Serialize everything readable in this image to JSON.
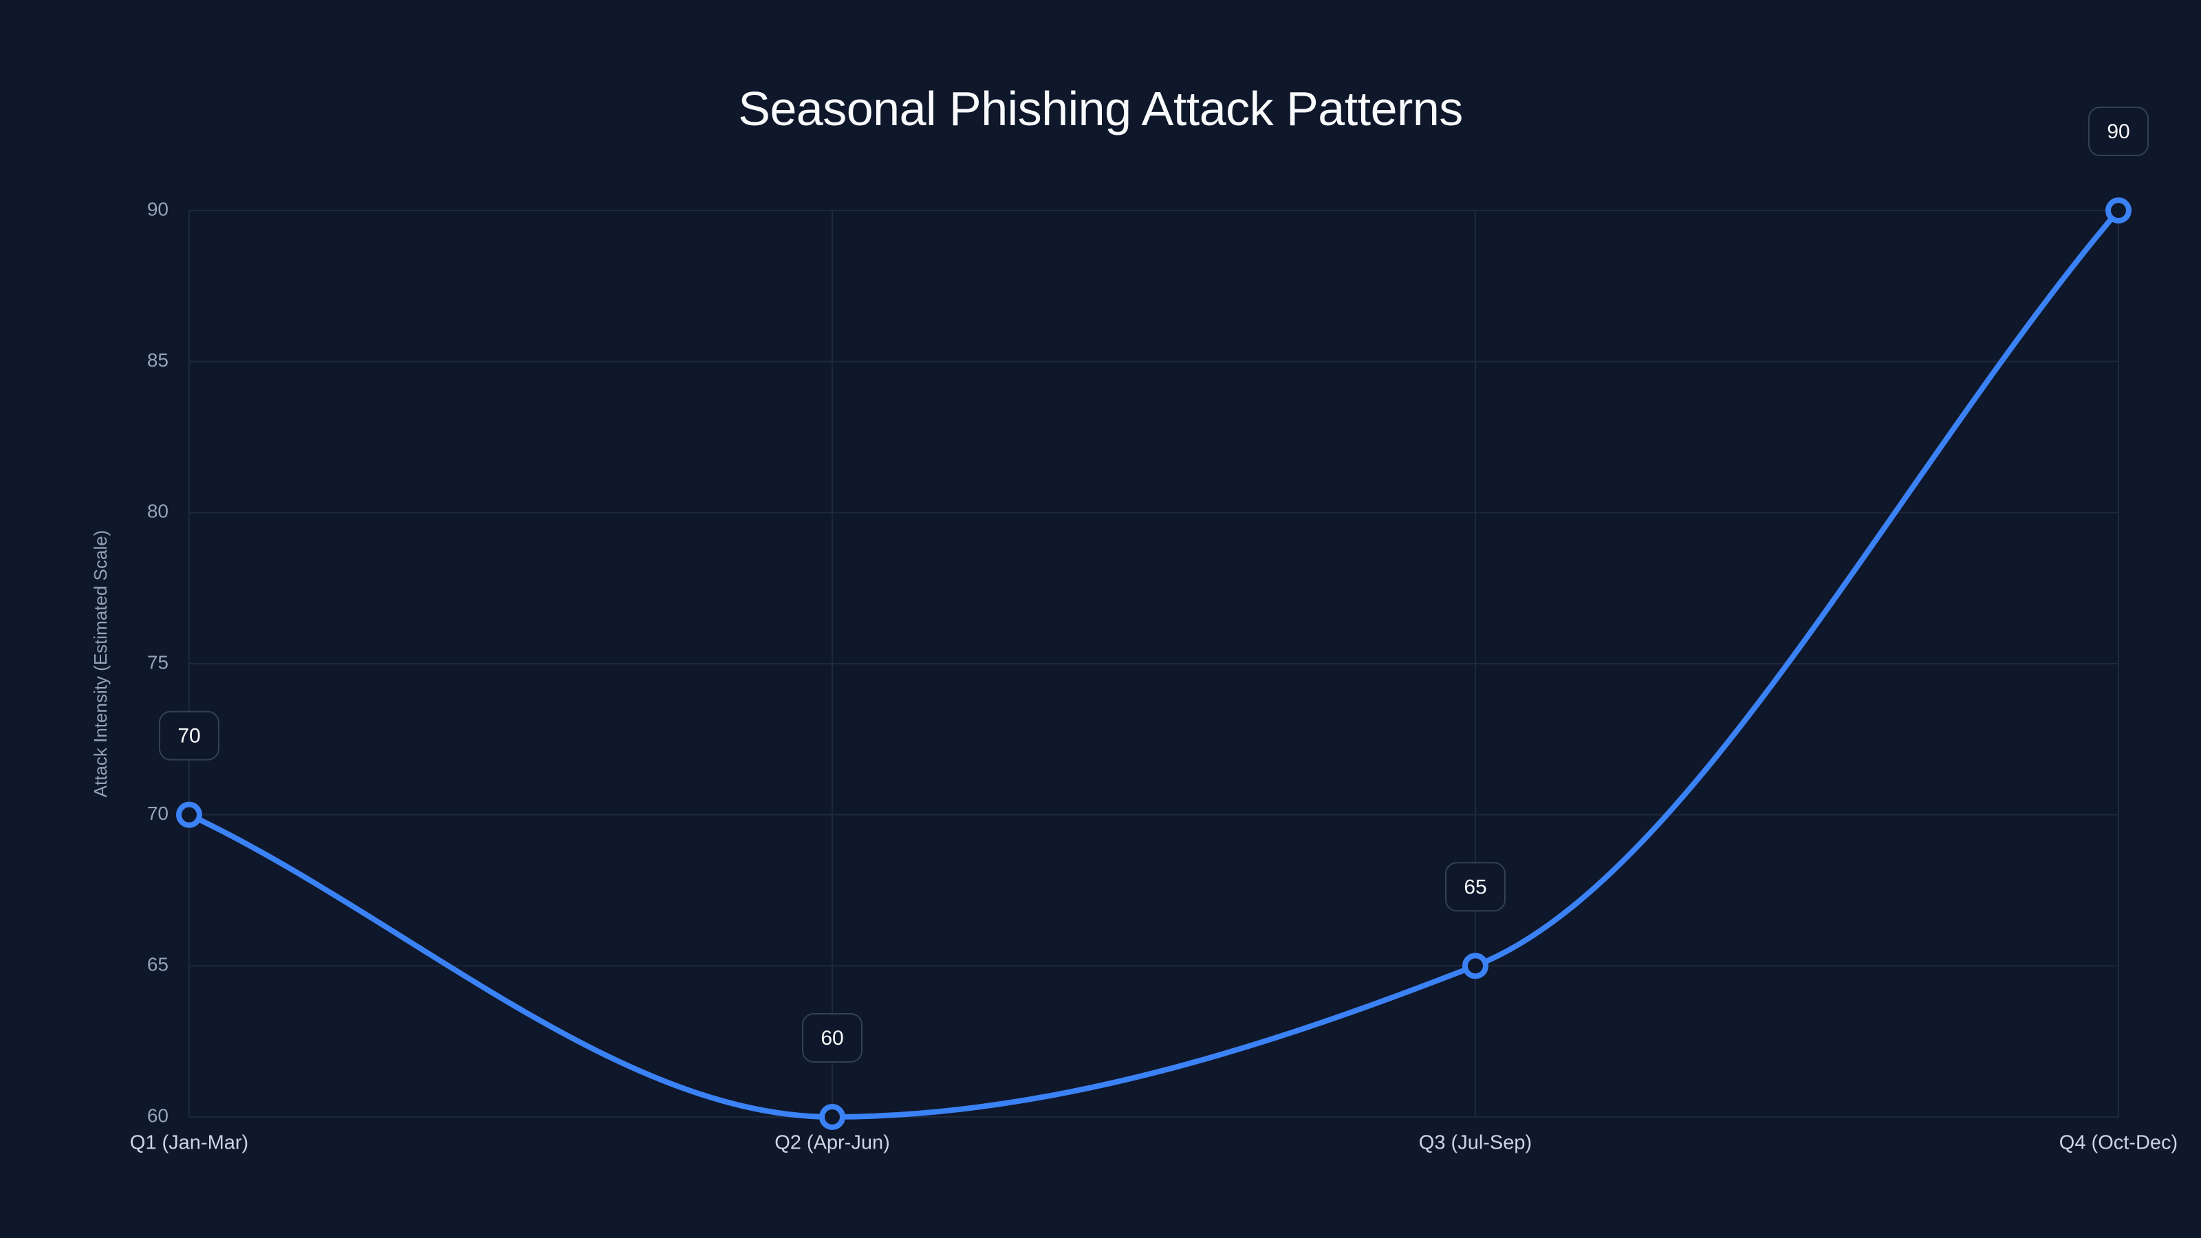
{
  "chart_data": {
    "type": "line",
    "title": "Seasonal Phishing Attack Patterns",
    "xlabel": "",
    "ylabel": "Attack Intensity (Estimated Scale)",
    "categories": [
      "Q1 (Jan-Mar)",
      "Q2 (Apr-Jun)",
      "Q3 (Jul-Sep)",
      "Q4 (Oct-Dec)"
    ],
    "series": [
      {
        "name": "Attack Intensity",
        "values": [
          70,
          60,
          65,
          90
        ],
        "color": "#3b82f6"
      }
    ],
    "ylim": [
      60,
      90
    ],
    "yticks": [
      60,
      65,
      70,
      75,
      80,
      85,
      90
    ],
    "grid": true,
    "legend": "none",
    "data_labels": true,
    "smooth": true
  },
  "colors": {
    "background": "#0f172a",
    "line": "#3b82f6",
    "grid": "#1e293b",
    "tick_text": "#94a3b8",
    "title_text": "#f8fafc"
  }
}
